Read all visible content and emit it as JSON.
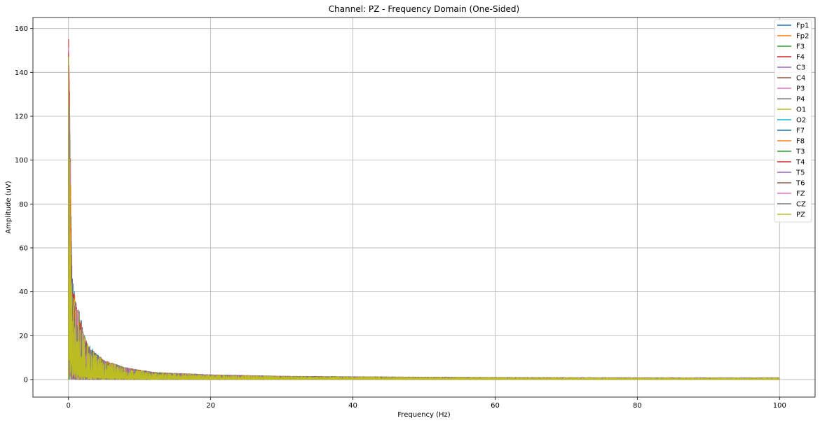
{
  "chart_data": {
    "type": "line",
    "title": "Channel: PZ - Frequency Domain (One-Sided)",
    "xlabel": "Frequency (Hz)",
    "ylabel": "Amplitude (uV)",
    "xlim": [
      -5,
      105
    ],
    "ylim": [
      -8,
      165
    ],
    "xticks": [
      0,
      20,
      40,
      60,
      80,
      100
    ],
    "yticks": [
      0,
      20,
      40,
      60,
      80,
      100,
      120,
      140,
      160
    ],
    "xtick_labels": [
      "0",
      "20",
      "40",
      "60",
      "80",
      "100"
    ],
    "ytick_labels": [
      "0",
      "20",
      "40",
      "60",
      "80",
      "100",
      "120",
      "140",
      "160"
    ],
    "grid": true,
    "legend_position": "top-right",
    "series": [
      {
        "name": "Fp1",
        "color": "#1f77b4",
        "peak": 150,
        "x": [
          0,
          0.05,
          0.5,
          1,
          1.5,
          2,
          3,
          5,
          8,
          12,
          20,
          30,
          50,
          70,
          100
        ],
        "y": [
          0,
          150,
          46,
          35,
          30,
          22,
          14,
          8,
          5,
          3,
          2,
          1.4,
          1,
          0.8,
          0.7
        ]
      },
      {
        "name": "Fp2",
        "color": "#ff7f0e",
        "peak": 148,
        "x": [
          0,
          0.05,
          0.5,
          1,
          1.5,
          2,
          3,
          5,
          8,
          12,
          20,
          30,
          50,
          70,
          100
        ],
        "y": [
          0,
          148,
          40,
          34,
          28,
          20,
          13,
          8,
          5,
          3,
          2,
          1.4,
          1,
          0.8,
          0.7
        ]
      },
      {
        "name": "F3",
        "color": "#2ca02c",
        "peak": 149,
        "x": [
          0,
          0.05,
          0.5,
          1,
          1.5,
          2,
          3,
          5,
          8,
          12,
          20,
          30,
          50,
          70,
          100
        ],
        "y": [
          0,
          149,
          38,
          33,
          27,
          21,
          13,
          8,
          5,
          3,
          2,
          1.4,
          1,
          0.8,
          0.7
        ]
      },
      {
        "name": "F4",
        "color": "#d62728",
        "peak": 155,
        "x": [
          0,
          0.05,
          0.5,
          1,
          1.5,
          2,
          3,
          5,
          8,
          12,
          20,
          30,
          50,
          70,
          100
        ],
        "y": [
          0,
          155,
          39,
          33,
          28,
          21,
          13,
          8,
          5,
          3,
          2,
          1.4,
          1,
          0.8,
          0.7
        ]
      },
      {
        "name": "C3",
        "color": "#9467bd",
        "peak": 148,
        "x": [
          0,
          0.05,
          0.5,
          1,
          1.5,
          2,
          3,
          5,
          8,
          12,
          20,
          30,
          50,
          70,
          100
        ],
        "y": [
          0,
          148,
          37,
          32,
          27,
          20,
          13,
          8,
          5,
          3,
          2,
          1.4,
          1,
          0.8,
          0.7
        ]
      },
      {
        "name": "C4",
        "color": "#8c564b",
        "peak": 150,
        "x": [
          0,
          0.05,
          0.5,
          1,
          1.5,
          2,
          3,
          5,
          8,
          12,
          20,
          30,
          50,
          70,
          100
        ],
        "y": [
          0,
          150,
          38,
          33,
          27,
          20,
          13,
          8,
          5,
          3,
          2,
          1.4,
          1,
          0.8,
          0.7
        ]
      },
      {
        "name": "P3",
        "color": "#e377c2",
        "peak": 151,
        "x": [
          0,
          0.05,
          0.5,
          1,
          1.5,
          2,
          3,
          5,
          8,
          12,
          20,
          30,
          50,
          70,
          100
        ],
        "y": [
          0,
          151,
          38,
          32,
          27,
          20,
          13,
          8,
          5,
          3,
          2,
          1.4,
          1,
          0.8,
          0.7
        ]
      },
      {
        "name": "P4",
        "color": "#7f7f7f",
        "peak": 147,
        "x": [
          0,
          0.05,
          0.5,
          1,
          1.5,
          2,
          3,
          5,
          8,
          12,
          20,
          30,
          50,
          70,
          100
        ],
        "y": [
          0,
          147,
          37,
          31,
          27,
          20,
          13,
          8,
          5,
          3,
          2,
          1.4,
          1,
          0.8,
          0.7
        ]
      },
      {
        "name": "O1",
        "color": "#bcbd22",
        "peak": 148,
        "x": [
          0,
          0.05,
          0.5,
          1,
          1.5,
          2,
          3,
          5,
          8,
          12,
          20,
          30,
          50,
          70,
          100
        ],
        "y": [
          0,
          148,
          38,
          32,
          26,
          20,
          13,
          8,
          5,
          3,
          2,
          1.4,
          1,
          0.8,
          0.7
        ]
      },
      {
        "name": "O2",
        "color": "#17becf",
        "peak": 146,
        "x": [
          0,
          0.05,
          0.5,
          1,
          1.5,
          2,
          3,
          5,
          8,
          12,
          20,
          30,
          50,
          70,
          100
        ],
        "y": [
          0,
          146,
          37,
          31,
          26,
          20,
          13,
          8,
          5,
          3,
          2,
          1.4,
          1,
          0.8,
          0.7
        ]
      },
      {
        "name": "F7",
        "color": "#1f77b4",
        "peak": 147,
        "x": [
          0,
          0.05,
          0.5,
          1,
          1.5,
          2,
          3,
          5,
          8,
          12,
          20,
          30,
          50,
          70,
          100
        ],
        "y": [
          0,
          147,
          38,
          32,
          26,
          20,
          13,
          8,
          5,
          3,
          2,
          1.4,
          1,
          0.8,
          0.7
        ]
      },
      {
        "name": "F8",
        "color": "#ff7f0e",
        "peak": 146,
        "x": [
          0,
          0.05,
          0.5,
          1,
          1.5,
          2,
          3,
          5,
          8,
          12,
          20,
          30,
          50,
          70,
          100
        ],
        "y": [
          0,
          146,
          37,
          31,
          26,
          20,
          13,
          8,
          5,
          3,
          2,
          1.4,
          1,
          0.8,
          0.7
        ]
      },
      {
        "name": "T3",
        "color": "#2ca02c",
        "peak": 147,
        "x": [
          0,
          0.05,
          0.5,
          1,
          1.5,
          2,
          3,
          5,
          8,
          12,
          20,
          30,
          50,
          70,
          100
        ],
        "y": [
          0,
          147,
          37,
          31,
          26,
          20,
          13,
          8,
          5,
          3,
          2,
          1.4,
          1,
          0.8,
          0.7
        ]
      },
      {
        "name": "T4",
        "color": "#d62728",
        "peak": 149,
        "x": [
          0,
          0.05,
          0.5,
          1,
          1.5,
          2,
          3,
          5,
          8,
          12,
          20,
          30,
          50,
          70,
          100
        ],
        "y": [
          0,
          149,
          38,
          32,
          26,
          20,
          13,
          8,
          5,
          3,
          2,
          1.4,
          1,
          0.8,
          0.7
        ]
      },
      {
        "name": "T5",
        "color": "#9467bd",
        "peak": 146,
        "x": [
          0,
          0.05,
          0.5,
          1,
          1.5,
          2,
          3,
          5,
          8,
          12,
          20,
          30,
          50,
          70,
          100
        ],
        "y": [
          0,
          146,
          37,
          31,
          26,
          20,
          13,
          8,
          5,
          3,
          2,
          1.4,
          1,
          0.8,
          0.7
        ]
      },
      {
        "name": "T6",
        "color": "#8c564b",
        "peak": 147,
        "x": [
          0,
          0.05,
          0.5,
          1,
          1.5,
          2,
          3,
          5,
          8,
          12,
          20,
          30,
          50,
          70,
          100
        ],
        "y": [
          0,
          147,
          37,
          31,
          26,
          20,
          13,
          8,
          5,
          3,
          2,
          1.4,
          1,
          0.8,
          0.7
        ]
      },
      {
        "name": "FZ",
        "color": "#e377c2",
        "peak": 147,
        "x": [
          0,
          0.05,
          0.5,
          1,
          1.5,
          2,
          3,
          5,
          8,
          12,
          20,
          30,
          50,
          70,
          100
        ],
        "y": [
          0,
          147,
          38,
          32,
          26,
          20,
          13,
          8,
          5,
          3,
          2,
          1.4,
          1,
          0.8,
          0.7
        ]
      },
      {
        "name": "CZ",
        "color": "#7f7f7f",
        "peak": 146,
        "x": [
          0,
          0.05,
          0.5,
          1,
          1.5,
          2,
          3,
          5,
          8,
          12,
          20,
          30,
          50,
          70,
          100
        ],
        "y": [
          0,
          146,
          37,
          31,
          26,
          20,
          13,
          8,
          5,
          3,
          2,
          1.4,
          1,
          0.8,
          0.7
        ]
      },
      {
        "name": "PZ",
        "color": "#bcbd22",
        "peak": 147,
        "x": [
          0,
          0.05,
          0.5,
          1,
          1.5,
          2,
          3,
          5,
          8,
          12,
          20,
          30,
          50,
          70,
          100
        ],
        "y": [
          0,
          147,
          41,
          34,
          27,
          20,
          13,
          8,
          5,
          3,
          2,
          1.4,
          1,
          0.8,
          0.7
        ]
      }
    ]
  }
}
